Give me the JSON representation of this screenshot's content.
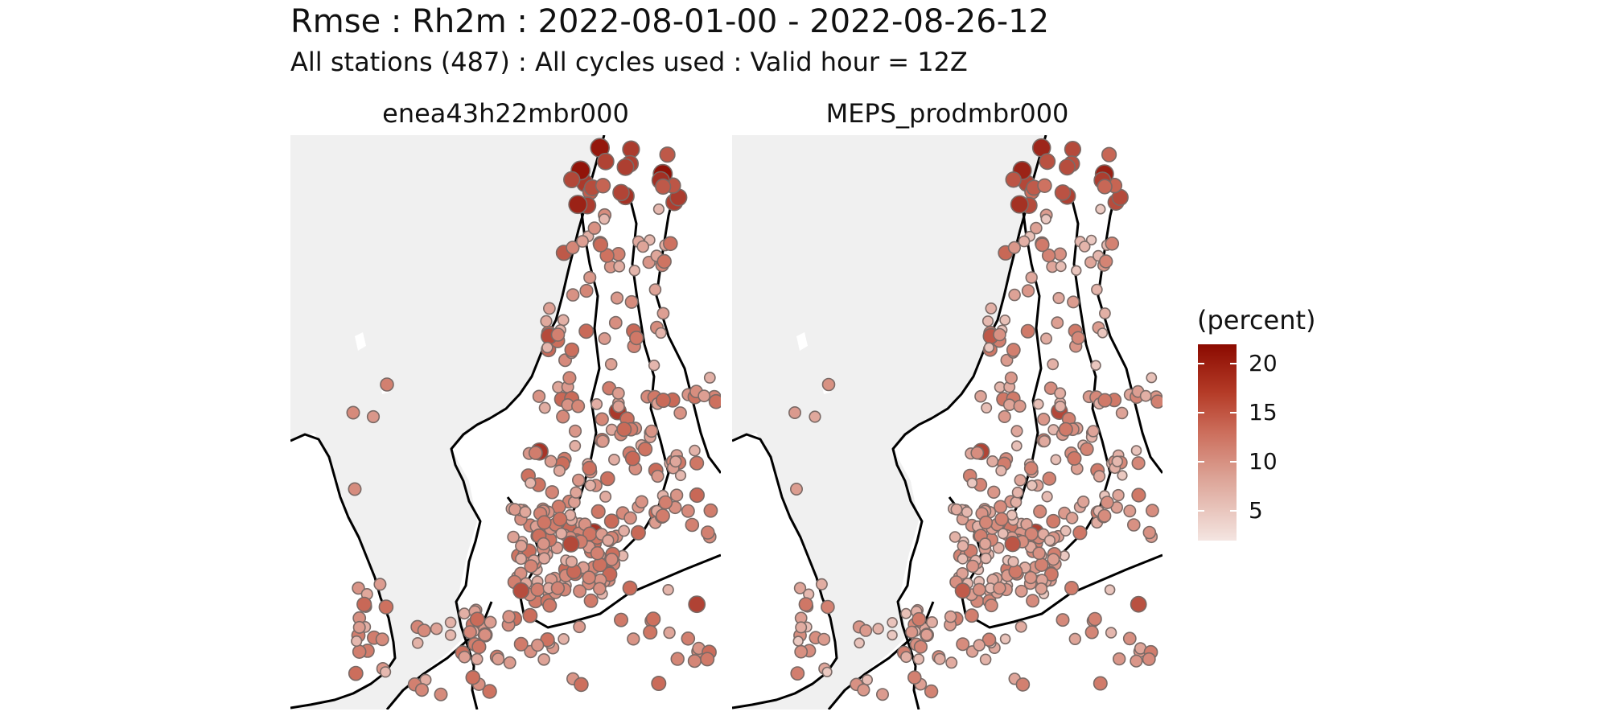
{
  "title": "Rmse : Rh2m : 2022-08-01-00 - 2022-08-26-12",
  "subtitle": "All stations (487) : All cycles used : Valid hour = 12Z",
  "panels": [
    {
      "name": "enea43h22mbr000"
    },
    {
      "name": "MEPS_prodmbr000"
    }
  ],
  "legend": {
    "title": "(percent)",
    "ticks": [
      {
        "value": 20,
        "label": "20"
      },
      {
        "value": 15,
        "label": "15"
      },
      {
        "value": 10,
        "label": "10"
      },
      {
        "value": 5,
        "label": "5"
      }
    ],
    "range": [
      2,
      22
    ]
  },
  "colors": {
    "land": "#ffffff",
    "sea": "#f0f0f0",
    "coastline": "#000000",
    "low": "#f4e5e1",
    "high": "#8b0a00",
    "point_stroke": "#7a6a66"
  }
}
